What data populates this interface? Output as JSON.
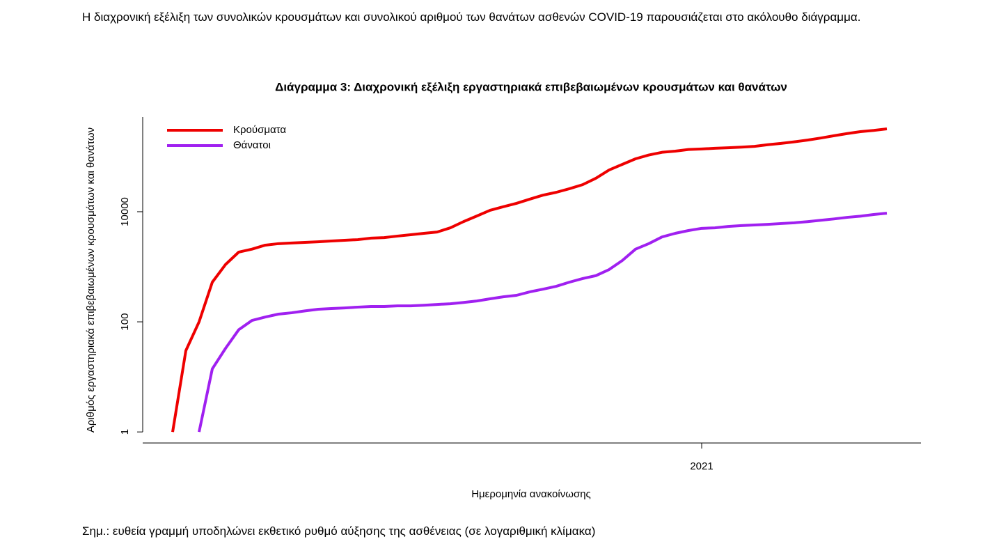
{
  "intro": "Η διαχρονική εξέλιξη των συνολικών κρουσμάτων και συνολικού αριθμού των θανάτων ασθενών COVID-19 παρουσιάζεται στο ακόλουθο διάγραμμα.",
  "note": "Σημ.: ευθεία γραμμή υποδηλώνει εκθετικό ρυθμό αύξησης της ασθένειας (σε λογαριθμική κλίμακα)",
  "chart_data": {
    "type": "line",
    "title": "Διάγραμμα 3: Διαχρονική εξέλιξη εργαστηριακά επιβεβαιωμένων κρουσμάτων και θανάτων",
    "x_label": "Ημερομηνία ανακοίνωσης",
    "y_label": "Αριθμός εργαστηριακά επιβεβαιωμένων κρουσμάτων και θανάτων",
    "categories": [
      null,
      null,
      null,
      null,
      null,
      null,
      null,
      null,
      null,
      null,
      null,
      null,
      null,
      null,
      null,
      null,
      null,
      null,
      null,
      null,
      null,
      null,
      null,
      null,
      null,
      null,
      null,
      null,
      null,
      null,
      null,
      null,
      null,
      null,
      null,
      null,
      null,
      null,
      null,
      null,
      "2021",
      null,
      null,
      null,
      null,
      null,
      null,
      null,
      null,
      null,
      null,
      null,
      null,
      null,
      null
    ],
    "series": [
      {
        "name": "Κρούσματα",
        "color": "#ee0000",
        "values": [
          1,
          30,
          100,
          525,
          1100,
          1850,
          2090,
          2470,
          2630,
          2700,
          2770,
          2840,
          2940,
          3030,
          3110,
          3310,
          3390,
          3610,
          3820,
          4050,
          4280,
          5100,
          6620,
          8360,
          10600,
          12300,
          14200,
          16900,
          20000,
          22500,
          26200,
          31000,
          40500,
          57300,
          72400,
          91400,
          107000,
          120000,
          126000,
          135000,
          138000,
          142000,
          145000,
          149000,
          154000,
          165000,
          174000,
          186000,
          200000,
          218000,
          240000,
          263000,
          285000,
          300000,
          320000
        ]
      },
      {
        "name": "Θάνατοι",
        "color": "#a020f0",
        "values": [
          null,
          null,
          1,
          14,
          33,
          72,
          106,
          122,
          138,
          146,
          158,
          169,
          174,
          179,
          185,
          190,
          190,
          195,
          195,
          200,
          207,
          213,
          225,
          239,
          262,
          285,
          303,
          350,
          392,
          442,
          525,
          610,
          690,
          890,
          1300,
          2090,
          2630,
          3480,
          4050,
          4550,
          4990,
          5100,
          5400,
          5600,
          5750,
          5900,
          6100,
          6300,
          6600,
          7000,
          7400,
          7900,
          8300,
          8900,
          9400
        ]
      }
    ],
    "ylim": [
      0.63,
      525000
    ],
    "yticks": [
      1,
      100,
      10000
    ],
    "log_scale": true,
    "legend": "upper left"
  }
}
